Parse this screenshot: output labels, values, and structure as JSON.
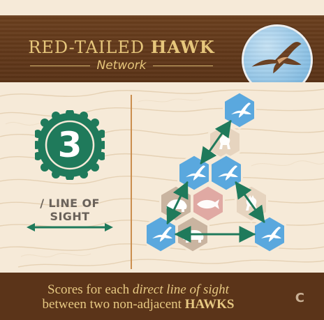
{
  "card": {
    "title_light": "RED-TAILED ",
    "title_bold": "HAWK",
    "subtitle": "Network",
    "score_value": "3",
    "score_label": "/ LINE OF SIGHT",
    "footer_line1_a": "Scores for each ",
    "footer_line1_b": "direct line of sight",
    "footer_line2_a": "between two non-adjacent ",
    "footer_line2_b": "HAWKS",
    "set_code": "C"
  },
  "icons": {
    "badge": "red-tailed-hawk-flight-icon",
    "hawk_tile": "hawk-tile-icon",
    "bear_tile": "bear-tile-icon",
    "salmon_tile": "salmon-tile-icon",
    "elk_tile": "elk-tile-icon",
    "arrow": "double-arrow-icon"
  },
  "colors": {
    "header_brown": "#5a3317",
    "gold_text": "#e6c67b",
    "paper": "#f6ead8",
    "green_seal": "#1f7a5b",
    "green_arrow": "#1f7a5b",
    "hawk_blue": "#5aa8de",
    "tan_tile": "#ccb7a2",
    "salmon_tile": "#e0a9a3",
    "footer_brown": "#5b3419",
    "footer_text": "#e7c983"
  }
}
